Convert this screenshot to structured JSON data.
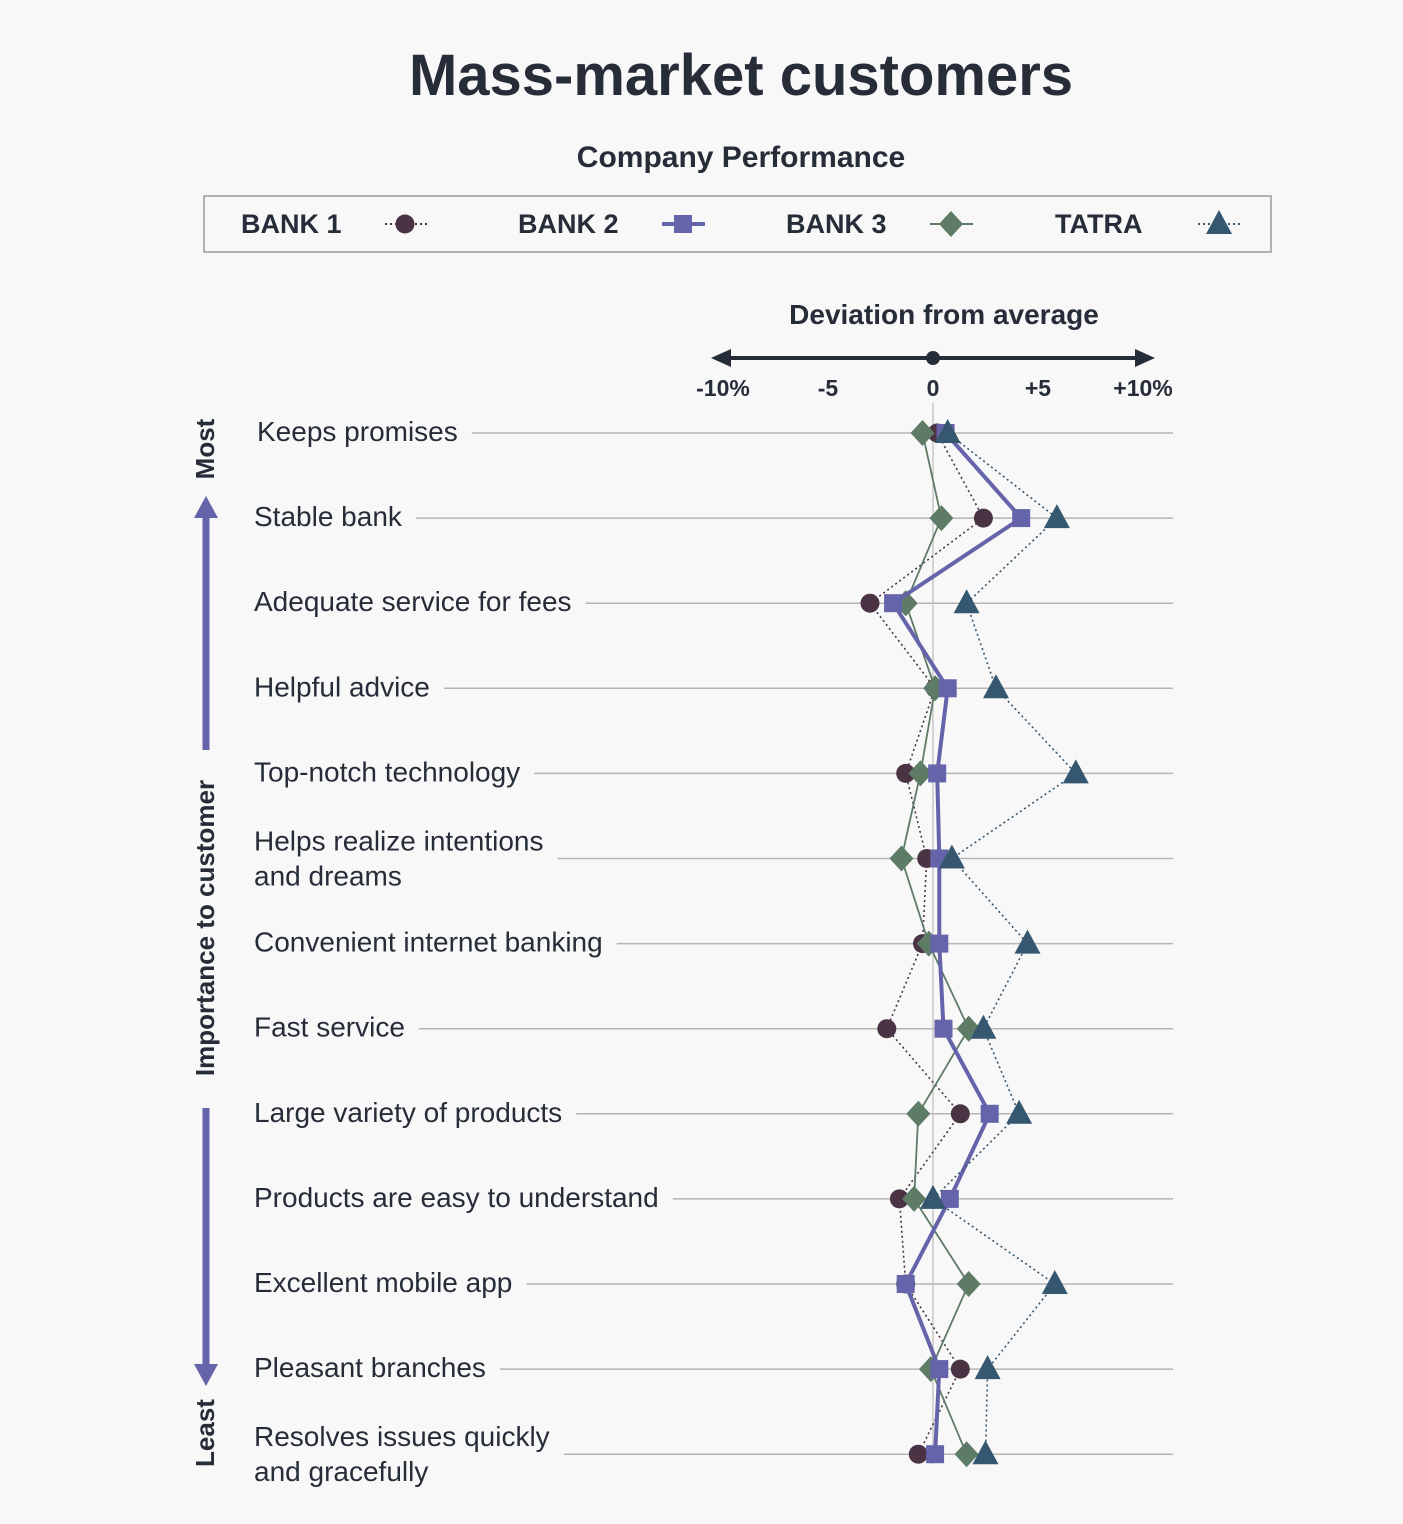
{
  "chart_data": {
    "type": "line",
    "title": "Mass-market customers",
    "subtitle": "Company Performance",
    "xlabel": "Deviation from average",
    "x_ticks": [
      "-10%",
      "-5",
      "0",
      "+5",
      "+10%"
    ],
    "x_tick_values": [
      -10,
      -5,
      0,
      5,
      10
    ],
    "xlim": [
      -10,
      10
    ],
    "grid": false,
    "legend_position": "top",
    "side_axis": {
      "label": "Importance to customer",
      "top": "Most",
      "bottom": "Least"
    },
    "categories": [
      [
        "Keeps promises"
      ],
      [
        "Stable bank"
      ],
      [
        "Adequate service for fees"
      ],
      [
        "Helpful advice"
      ],
      [
        "Top-notch technology"
      ],
      [
        "Helps realize intentions",
        "and dreams"
      ],
      [
        "Convenient internet banking"
      ],
      [
        "Fast service"
      ],
      [
        "Large variety of products"
      ],
      [
        "Products are easy to understand"
      ],
      [
        "Excellent mobile app"
      ],
      [
        "Pleasant branches"
      ],
      [
        "Resolves issues quickly",
        "and gracefully"
      ]
    ],
    "series": [
      {
        "name": "BANK 1",
        "marker": "circle",
        "line": "dotted",
        "color": "#4a3444",
        "values": [
          0.2,
          2.4,
          -3.0,
          0.1,
          -1.3,
          -0.3,
          -0.5,
          -2.2,
          1.3,
          -1.6,
          -1.3,
          1.3,
          -0.7
        ]
      },
      {
        "name": "BANK 2",
        "marker": "square",
        "line": "solid",
        "color": "#6563aa",
        "values": [
          0.6,
          4.2,
          -1.9,
          0.7,
          0.2,
          0.3,
          0.3,
          0.5,
          2.7,
          0.8,
          -1.3,
          0.3,
          0.1
        ]
      },
      {
        "name": "BANK 3",
        "marker": "diamond",
        "line": "solid",
        "color": "#5e7b66",
        "values": [
          -0.5,
          0.4,
          -1.3,
          0.1,
          -0.6,
          -1.5,
          -0.2,
          1.7,
          -0.7,
          -0.9,
          1.7,
          -0.1,
          1.6
        ]
      },
      {
        "name": "TATRA",
        "marker": "triangle",
        "line": "dotted",
        "color": "#355770",
        "values": [
          0.7,
          5.9,
          1.6,
          3.0,
          6.8,
          0.9,
          4.5,
          2.4,
          4.1,
          0.0,
          5.8,
          2.6,
          2.5
        ]
      }
    ]
  }
}
